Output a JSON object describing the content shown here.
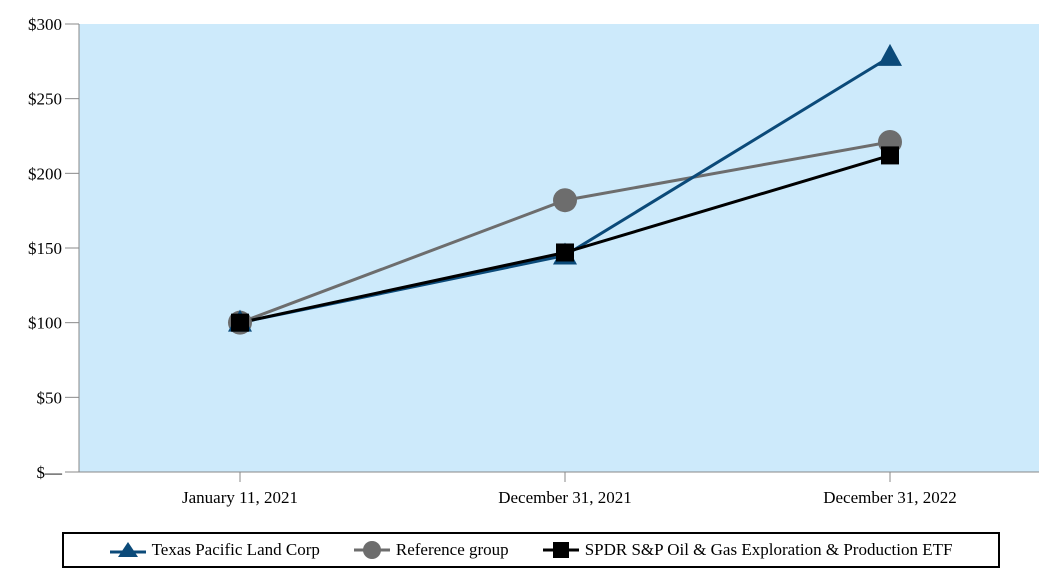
{
  "chart_data": {
    "type": "line",
    "categories": [
      "January 11, 2021",
      "December 31, 2021",
      "December 31, 2022"
    ],
    "y_ticks": [
      "$—",
      "$50",
      "$100",
      "$150",
      "$200",
      "$250",
      "$300"
    ],
    "ylim": [
      0,
      300
    ],
    "grid": false,
    "legend_position": "bottom",
    "plot_background": "#cdeafb",
    "series": [
      {
        "name": "Texas Pacific Land Corp",
        "values": [
          100,
          145,
          278
        ],
        "color": "#0b4a79",
        "marker": "triangle"
      },
      {
        "name": "Reference group",
        "values": [
          100,
          182,
          221
        ],
        "color": "#6d6d6d",
        "marker": "circle"
      },
      {
        "name": "SPDR S&P Oil & Gas Exploration & Production ETF",
        "values": [
          100,
          147,
          212
        ],
        "color": "#000000",
        "marker": "square"
      }
    ]
  }
}
